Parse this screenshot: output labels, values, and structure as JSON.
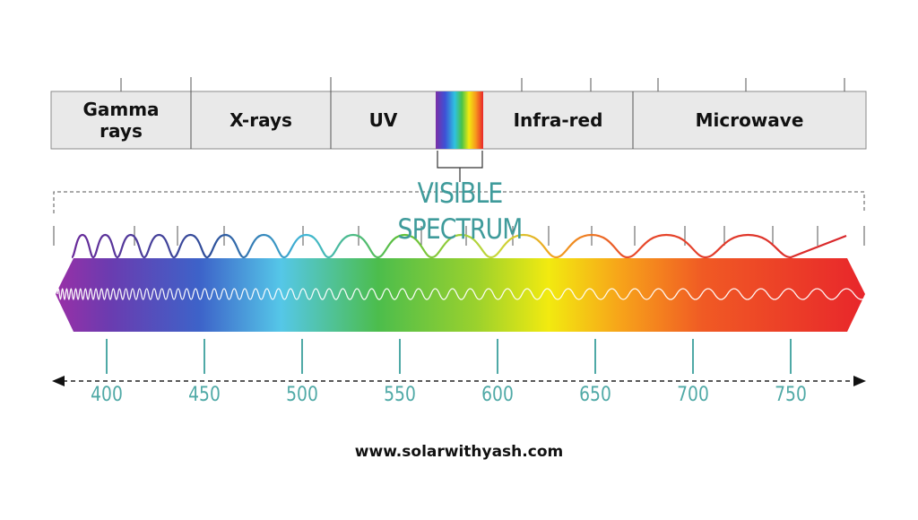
{
  "bands": [
    {
      "label": "Gamma\nrays"
    },
    {
      "label": "X-rays"
    },
    {
      "label": "UV"
    },
    {
      "label": ""
    },
    {
      "label": "Infra-red"
    },
    {
      "label": "Microwave"
    }
  ],
  "visible_title": "VISIBLE SPECTRUM",
  "wavelengths": [
    "400",
    "450",
    "500",
    "550",
    "600",
    "650",
    "700",
    "750"
  ],
  "website": "www.solarwithyash.com",
  "colors": {
    "band_fill": "#e9e9e9",
    "band_border": "#8a8a8a",
    "teal": "#4fa9a6",
    "spectrum": [
      "#9b2fa6",
      "#5b3fb3",
      "#3d63c9",
      "#55c7e8",
      "#4cbd4c",
      "#b8d92a",
      "#f2ea10",
      "#f7a21a",
      "#f05a24",
      "#e8262b"
    ]
  },
  "icons": {
    "arrow_left": "arrowhead-left-icon",
    "arrow_right": "arrowhead-right-icon"
  }
}
